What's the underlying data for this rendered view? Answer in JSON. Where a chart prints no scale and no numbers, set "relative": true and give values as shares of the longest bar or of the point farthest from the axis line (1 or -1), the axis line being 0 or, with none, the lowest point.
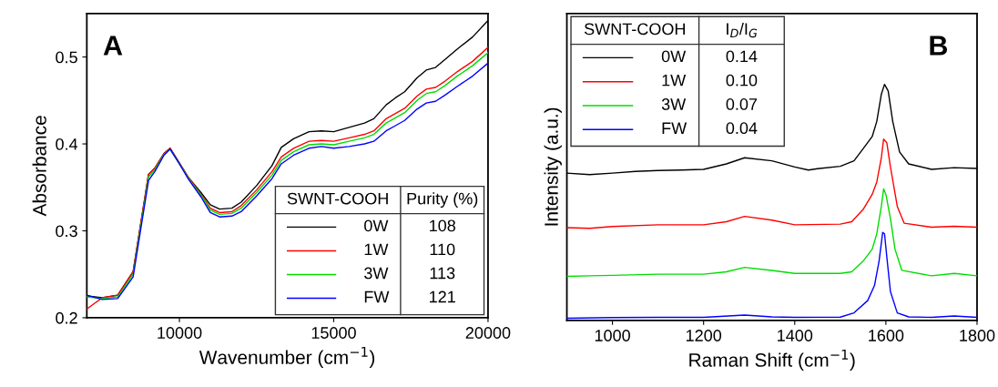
{
  "chart_data": [
    {
      "type": "line",
      "title": "A",
      "xlabel": "Wavenumber (cm$^{−1}$)",
      "ylabel": "Absorbance",
      "xlim": [
        7000,
        20000
      ],
      "xticks": [
        10000,
        15000,
        20000
      ],
      "ylim": [
        0.2,
        0.55
      ],
      "yticks": [
        0.2,
        0.3,
        0.4,
        0.5
      ],
      "legend": "bottom right",
      "legend_title": "SWNT-COOH",
      "annotations": [
        "Purity (%)",
        "108",
        "110",
        "113",
        "121"
      ],
      "x": [
        7000,
        7500,
        8000,
        8500,
        9000,
        9200,
        9500,
        9700,
        10000,
        10300,
        10700,
        11000,
        11300,
        11700,
        12000,
        12500,
        13000,
        13300,
        13700,
        14200,
        14600,
        15000,
        15500,
        16000,
        16300,
        16700,
        17000,
        17300,
        17700,
        18000,
        18300,
        18600,
        19000,
        19500,
        20000
      ],
      "series": [
        {
          "name": "0W",
          "color": "#000000",
          "values": [
            0.225,
            0.223,
            0.226,
            0.253,
            0.365,
            0.372,
            0.389,
            0.395,
            0.378,
            0.361,
            0.344,
            0.33,
            0.325,
            0.326,
            0.333,
            0.352,
            0.375,
            0.396,
            0.406,
            0.414,
            0.415,
            0.414,
            0.419,
            0.424,
            0.429,
            0.445,
            0.453,
            0.46,
            0.476,
            0.485,
            0.488,
            0.497,
            0.509,
            0.523,
            0.542
          ]
        },
        {
          "name": "1W",
          "color": "#ff0000",
          "values": [
            0.21,
            0.223,
            0.226,
            0.253,
            0.365,
            0.372,
            0.389,
            0.395,
            0.378,
            0.361,
            0.342,
            0.326,
            0.321,
            0.322,
            0.329,
            0.347,
            0.368,
            0.385,
            0.395,
            0.403,
            0.404,
            0.403,
            0.407,
            0.411,
            0.415,
            0.429,
            0.435,
            0.441,
            0.455,
            0.463,
            0.465,
            0.472,
            0.483,
            0.495,
            0.511
          ]
        },
        {
          "name": "3W",
          "color": "#00dd00",
          "values": [
            0.224,
            0.222,
            0.224,
            0.25,
            0.362,
            0.37,
            0.388,
            0.394,
            0.377,
            0.36,
            0.341,
            0.324,
            0.319,
            0.32,
            0.326,
            0.344,
            0.364,
            0.381,
            0.391,
            0.399,
            0.4,
            0.399,
            0.403,
            0.407,
            0.411,
            0.424,
            0.43,
            0.436,
            0.45,
            0.458,
            0.46,
            0.467,
            0.478,
            0.49,
            0.505
          ]
        },
        {
          "name": "FW",
          "color": "#0000ff",
          "values": [
            0.226,
            0.221,
            0.222,
            0.247,
            0.358,
            0.368,
            0.387,
            0.394,
            0.377,
            0.359,
            0.339,
            0.321,
            0.316,
            0.317,
            0.322,
            0.34,
            0.36,
            0.377,
            0.387,
            0.395,
            0.397,
            0.395,
            0.397,
            0.4,
            0.403,
            0.415,
            0.421,
            0.427,
            0.44,
            0.447,
            0.449,
            0.456,
            0.466,
            0.478,
            0.493
          ]
        }
      ]
    },
    {
      "type": "line",
      "title": "B",
      "xlabel": "Raman Shift (cm$^{−1}$)",
      "ylabel": "Intensity (a.u.)",
      "xlim": [
        900,
        1800
      ],
      "xticks": [
        1000,
        1200,
        1400,
        1600,
        1800
      ],
      "relative": true,
      "tick_labels": "x",
      "legend": "top left",
      "legend_title": "SWNT-COOH",
      "annotations": [
        "I$_{D}$/I$_{G}$",
        "0.14",
        "0.10",
        "0.07",
        "0.04"
      ],
      "series": [
        {
          "name": "0W",
          "color": "#000000",
          "x": [
            900,
            950,
            1000,
            1050,
            1100,
            1150,
            1200,
            1250,
            1290,
            1350,
            1400,
            1430,
            1450,
            1500,
            1530,
            1550,
            1570,
            1580,
            1590,
            1597,
            1605,
            1615,
            1630,
            1650,
            1700,
            1750,
            1800
          ],
          "values": [
            0.624,
            0.618,
            0.624,
            0.631,
            0.635,
            0.637,
            0.64,
            0.663,
            0.689,
            0.676,
            0.65,
            0.637,
            0.643,
            0.653,
            0.676,
            0.727,
            0.779,
            0.843,
            0.958,
            1.0,
            0.972,
            0.843,
            0.714,
            0.663,
            0.64,
            0.647,
            0.644
          ]
        },
        {
          "name": "1W",
          "color": "#ff0000",
          "x": [
            900,
            950,
            1000,
            1100,
            1200,
            1250,
            1290,
            1350,
            1400,
            1500,
            1525,
            1550,
            1570,
            1580,
            1590,
            1595,
            1602,
            1610,
            1625,
            1640,
            1700,
            1750,
            1800
          ],
          "values": [
            0.393,
            0.39,
            0.398,
            0.405,
            0.405,
            0.418,
            0.441,
            0.425,
            0.405,
            0.408,
            0.418,
            0.47,
            0.534,
            0.586,
            0.689,
            0.768,
            0.753,
            0.65,
            0.483,
            0.412,
            0.395,
            0.399,
            0.395
          ]
        },
        {
          "name": "3W",
          "color": "#00dd00",
          "x": [
            900,
            950,
            1000,
            1100,
            1200,
            1250,
            1290,
            1350,
            1400,
            1500,
            1525,
            1550,
            1570,
            1580,
            1590,
            1595,
            1600,
            1610,
            1620,
            1635,
            1700,
            1750,
            1800
          ],
          "values": [
            0.187,
            0.189,
            0.191,
            0.196,
            0.196,
            0.206,
            0.225,
            0.212,
            0.199,
            0.199,
            0.206,
            0.251,
            0.302,
            0.367,
            0.483,
            0.557,
            0.534,
            0.431,
            0.302,
            0.212,
            0.189,
            0.199,
            0.189
          ]
        },
        {
          "name": "FW",
          "color": "#0000ff",
          "x": [
            900,
            1000,
            1100,
            1200,
            1290,
            1350,
            1400,
            1500,
            1530,
            1560,
            1575,
            1585,
            1593,
            1597,
            1603,
            1610,
            1625,
            1650,
            1700,
            1750,
            1800
          ],
          "values": [
            0.009,
            0.012,
            0.013,
            0.013,
            0.023,
            0.015,
            0.013,
            0.014,
            0.032,
            0.084,
            0.148,
            0.251,
            0.373,
            0.367,
            0.251,
            0.122,
            0.032,
            0.015,
            0.013,
            0.019,
            0.013
          ]
        }
      ]
    }
  ]
}
